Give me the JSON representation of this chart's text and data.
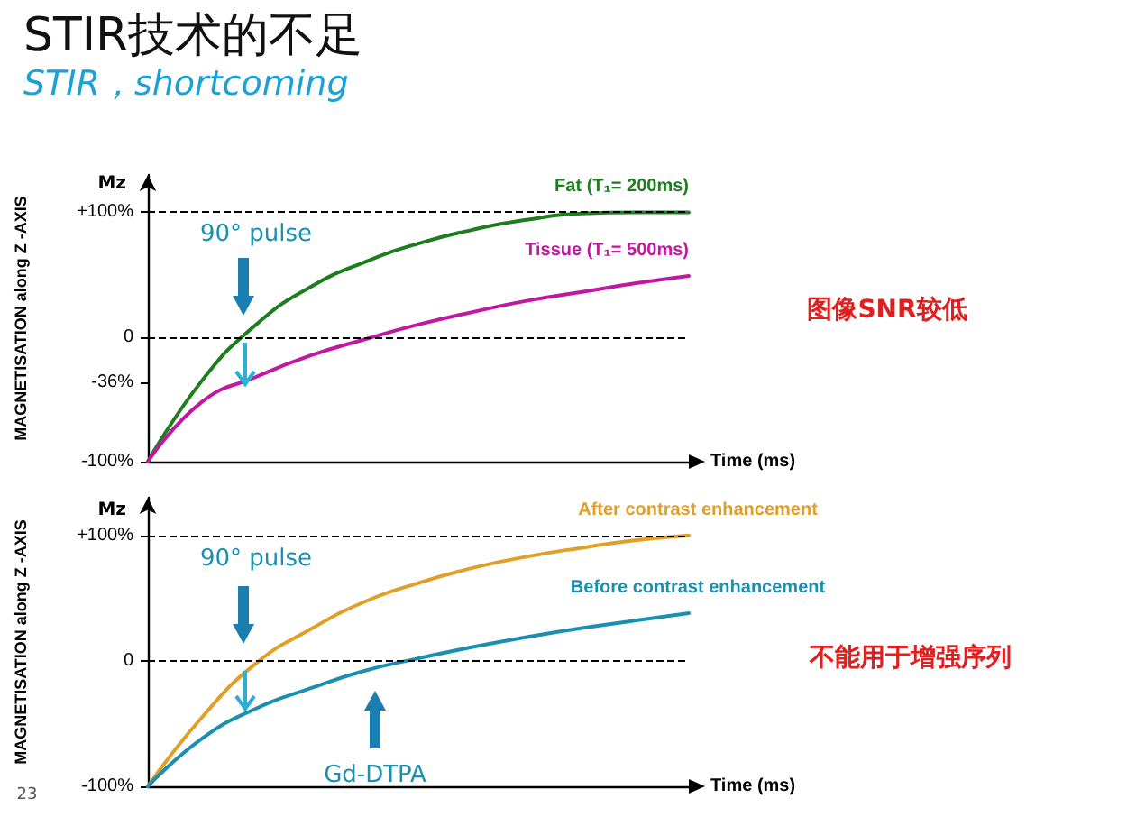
{
  "chart_data": [
    {
      "type": "line",
      "title": "STIR技术的不足",
      "subtitle": "STIR，shortcoming",
      "xlabel": "Time (ms)",
      "ylabel": "MAGNETISATION along Z -AXIS",
      "categories": [
        null,
        null,
        null,
        null,
        null,
        null,
        null,
        null,
        null,
        null,
        null
      ],
      "series": [
        {
          "name": "Fat (T₁= 200ms)",
          "color": "#1e7d1e",
          "values": [
            -100,
            -35,
            10,
            40,
            60,
            75,
            86,
            94,
            99,
            100,
            100
          ]
        },
        {
          "name": "Tissue (T₁= 500ms)",
          "color": "#c0189f",
          "values": [
            -100,
            -52,
            -32,
            -15,
            -2,
            10,
            20,
            29,
            36,
            43,
            49
          ]
        }
      ],
      "ylim": [
        -100,
        130
      ],
      "yticks": [
        {
          "value": -100,
          "label": "-100%"
        },
        {
          "value": -36,
          "label": "-36%"
        },
        {
          "value": 0,
          "label": "0"
        },
        {
          "value": 100,
          "label": "+100%"
        }
      ],
      "ref_lines": [
        {
          "axis": "y",
          "value": 100,
          "label": null,
          "color": "#000000",
          "line_style": "dashed"
        },
        {
          "axis": "y",
          "value": 0,
          "label": null,
          "color": "#000000",
          "line_style": "dashed"
        }
      ],
      "marker": "none",
      "line_style": "solid",
      "tick_labels": "y",
      "annotations": [
        "Mz",
        "90° pulse",
        "图像SNR较低"
      ]
    },
    {
      "type": "line",
      "xlabel": "Time (ms)",
      "ylabel": "MAGNETISATION along Z -AXIS",
      "categories": [
        null,
        null,
        null,
        null,
        null,
        null,
        null,
        null,
        null,
        null,
        null
      ],
      "series": [
        {
          "name": "After contrast enhancement",
          "color": "#e0a028",
          "values": [
            -100,
            -45,
            -2,
            25,
            47,
            62,
            74,
            83,
            90,
            96,
            100
          ]
        },
        {
          "name": "Before contrast enhancement",
          "color": "#1a8fb0",
          "values": [
            -100,
            -62,
            -38,
            -22,
            -8,
            2,
            11,
            19,
            26,
            32,
            38
          ]
        }
      ],
      "ylim": [
        -100,
        130
      ],
      "yticks": [
        {
          "value": -100,
          "label": "-100%"
        },
        {
          "value": 0,
          "label": "0"
        },
        {
          "value": 100,
          "label": "+100%"
        }
      ],
      "ref_lines": [
        {
          "axis": "y",
          "value": 100,
          "label": null,
          "color": "#000000",
          "line_style": "dashed"
        },
        {
          "axis": "y",
          "value": 0,
          "label": null,
          "color": "#000000",
          "line_style": "dashed"
        }
      ],
      "marker": "none",
      "line_style": "solid",
      "tick_labels": "y",
      "annotations": [
        "Mz",
        "90° pulse",
        "Gd-DTPA",
        "不能用于增强序列",
        "23"
      ]
    }
  ]
}
